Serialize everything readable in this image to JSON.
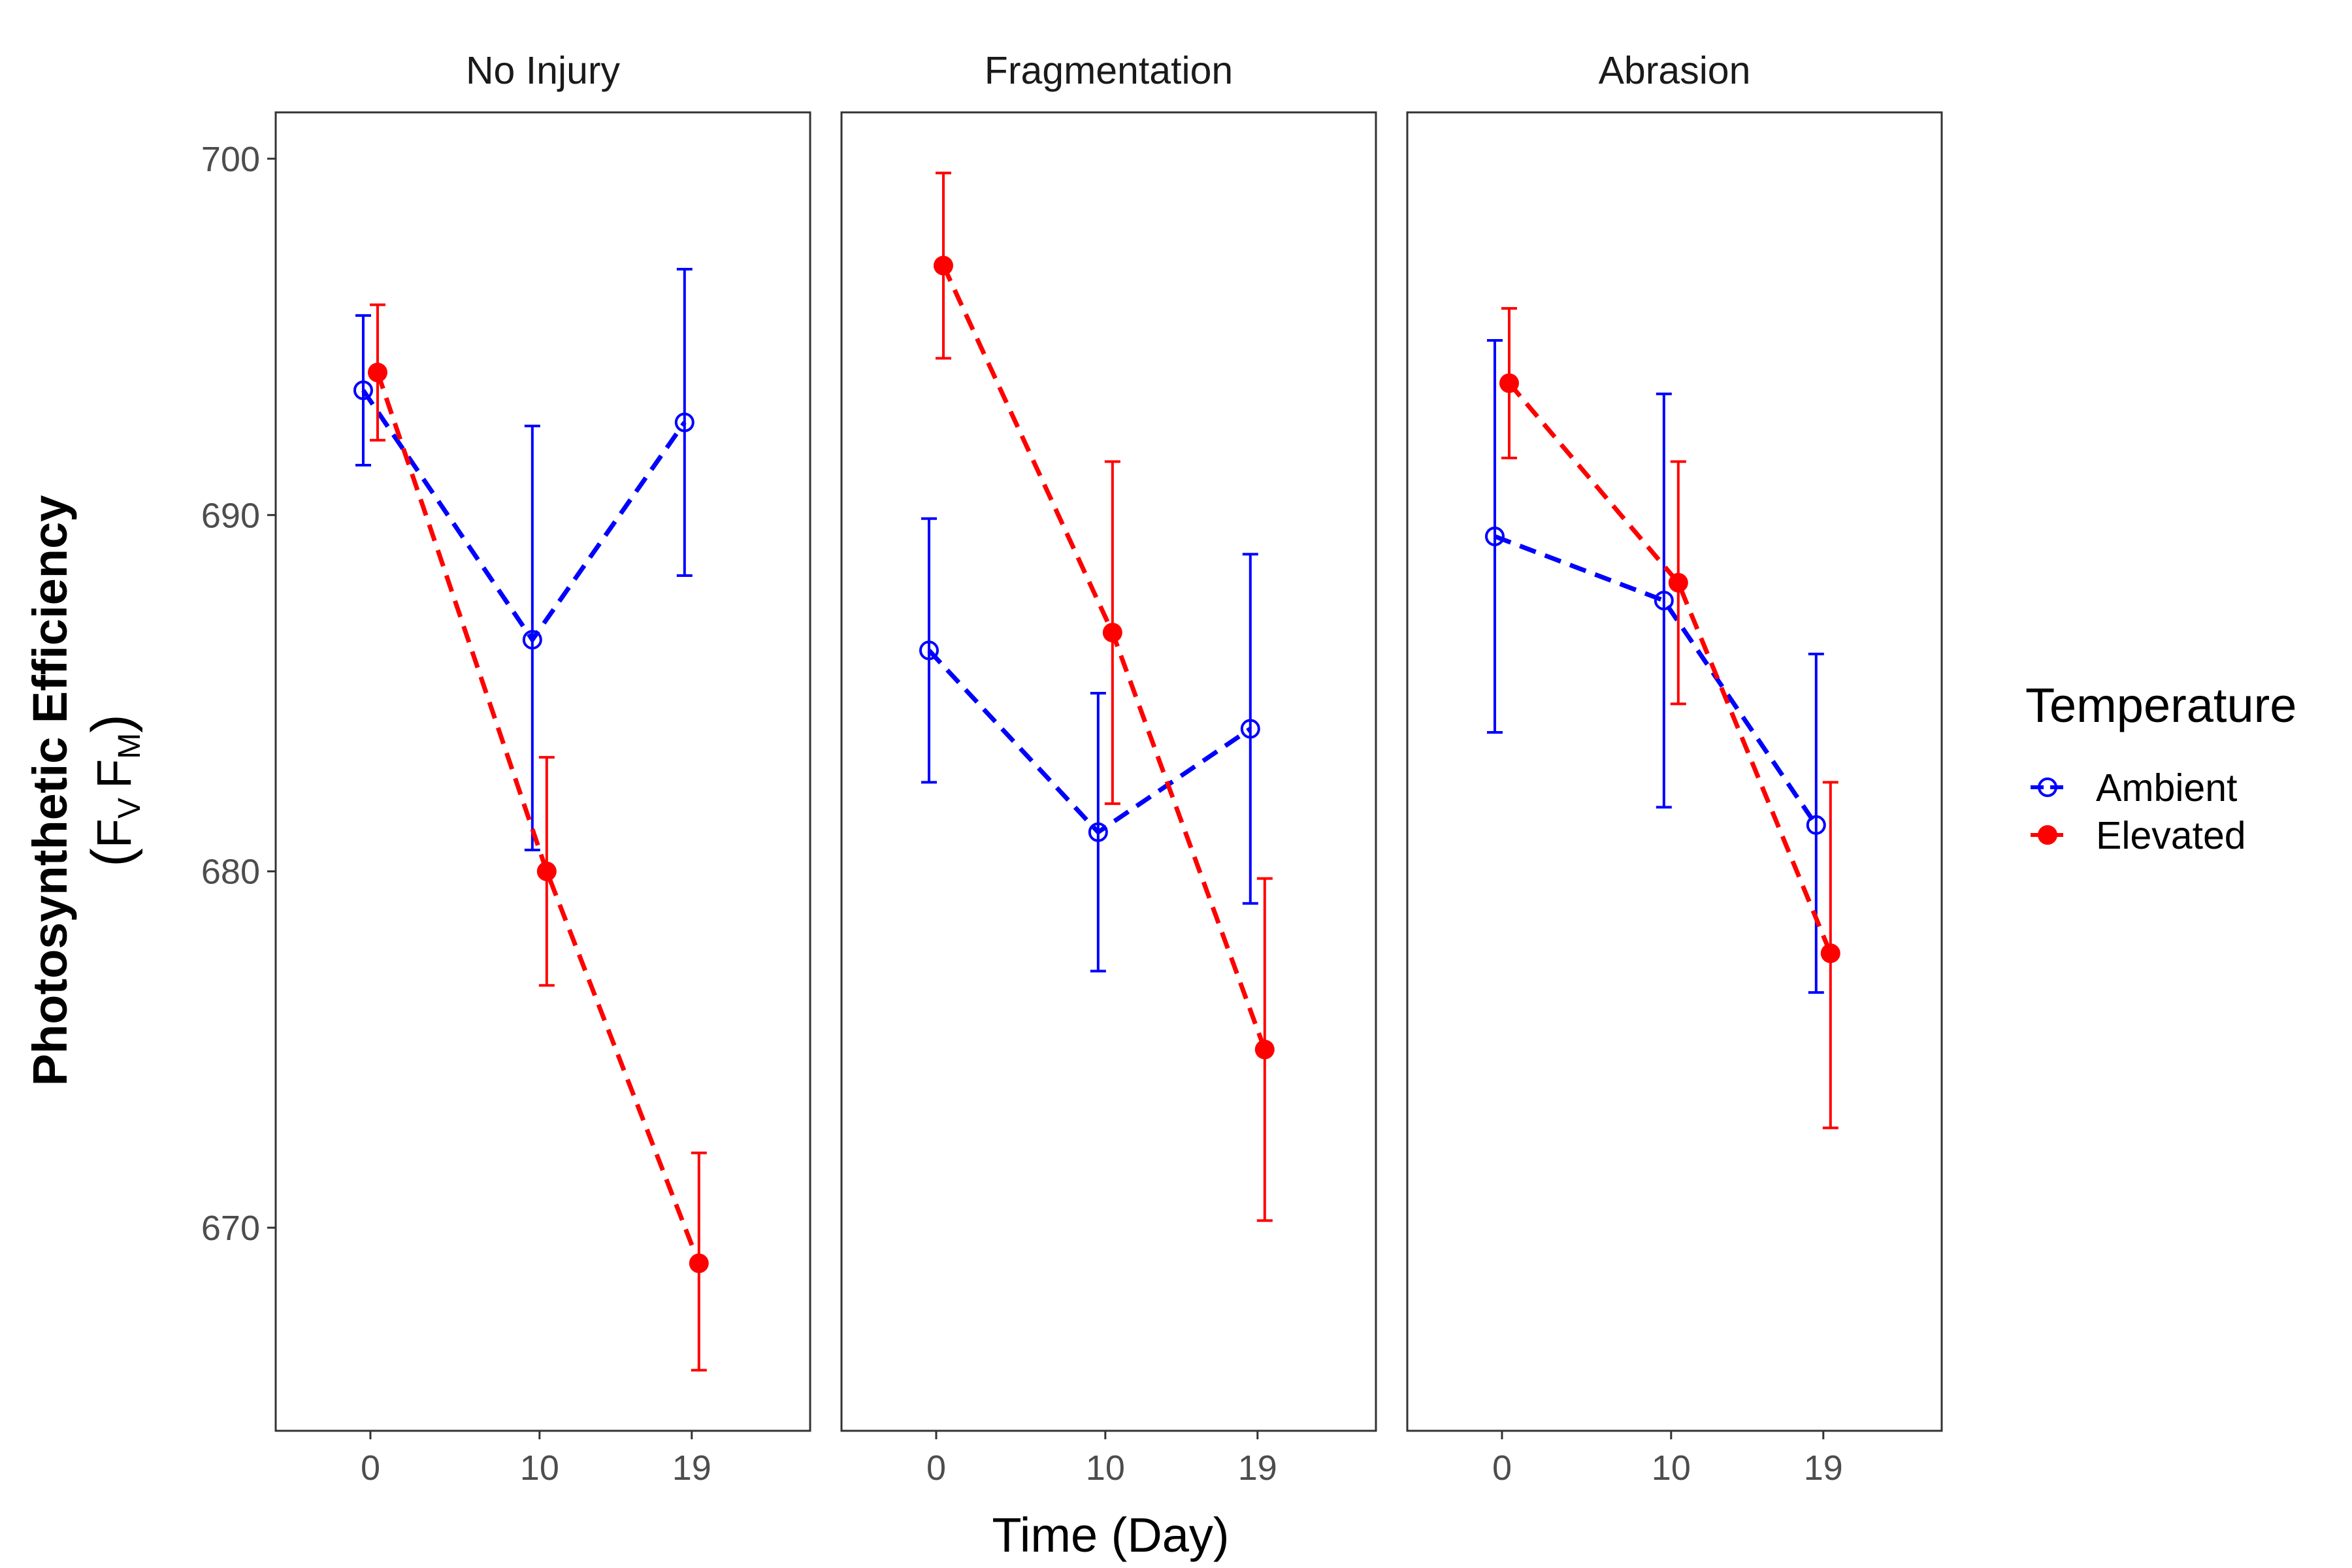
{
  "chart_data": {
    "type": "line",
    "xlabel": "Time (Day)",
    "ylabel": {
      "line1": "Photosynthetic Efficiency",
      "line2": {
        "open": "(",
        "f1": "F",
        "sub1": "V",
        "f2": "F",
        "sub2": "M",
        "close": ")"
      }
    },
    "ylim": [
      664.3,
      701.3
    ],
    "yticks": [
      670,
      680,
      690,
      700
    ],
    "x_ticks": [
      0,
      10,
      19
    ],
    "xlim": [
      -5.6,
      26
    ],
    "grid": false,
    "legend": {
      "title": "Temperature",
      "position": "right",
      "entries": [
        "Ambient",
        "Elevated"
      ]
    },
    "colors": {
      "Ambient": "#0000ff",
      "Elevated": "#ff0000"
    },
    "panels": [
      {
        "label": "No Injury",
        "series": [
          {
            "name": "Ambient",
            "marker": "open-circle",
            "x": [
              0,
              10,
              19
            ],
            "y": [
              693.5,
              686.5,
              692.6
            ],
            "lower": [
              691.4,
              680.6,
              688.3
            ],
            "upper": [
              695.6,
              692.5,
              696.9
            ]
          },
          {
            "name": "Elevated",
            "marker": "filled-circle",
            "x": [
              0,
              10,
              19
            ],
            "y": [
              694.0,
              680.0,
              669.0
            ],
            "lower": [
              692.1,
              676.8,
              666.0
            ],
            "upper": [
              695.9,
              683.2,
              672.1
            ]
          }
        ]
      },
      {
        "label": "Fragmentation",
        "series": [
          {
            "name": "Ambient",
            "marker": "open-circle",
            "x": [
              0,
              10,
              19
            ],
            "y": [
              686.2,
              681.1,
              684.0
            ],
            "lower": [
              682.5,
              677.2,
              679.1
            ],
            "upper": [
              689.9,
              685.0,
              688.9
            ]
          },
          {
            "name": "Elevated",
            "marker": "filled-circle",
            "x": [
              0,
              10,
              19
            ],
            "y": [
              697.0,
              686.7,
              675.0
            ],
            "lower": [
              694.4,
              681.9,
              670.2
            ],
            "upper": [
              699.6,
              691.5,
              679.8
            ]
          }
        ]
      },
      {
        "label": "Abrasion",
        "series": [
          {
            "name": "Ambient",
            "marker": "open-circle",
            "x": [
              0,
              10,
              19
            ],
            "y": [
              689.4,
              687.6,
              681.3
            ],
            "lower": [
              683.9,
              681.8,
              676.6
            ],
            "upper": [
              694.9,
              693.4,
              686.1
            ]
          },
          {
            "name": "Elevated",
            "marker": "filled-circle",
            "x": [
              0,
              10,
              19
            ],
            "y": [
              693.7,
              688.1,
              677.7
            ],
            "lower": [
              691.6,
              684.7,
              672.8
            ],
            "upper": [
              695.8,
              691.5,
              682.5
            ]
          }
        ]
      }
    ]
  }
}
